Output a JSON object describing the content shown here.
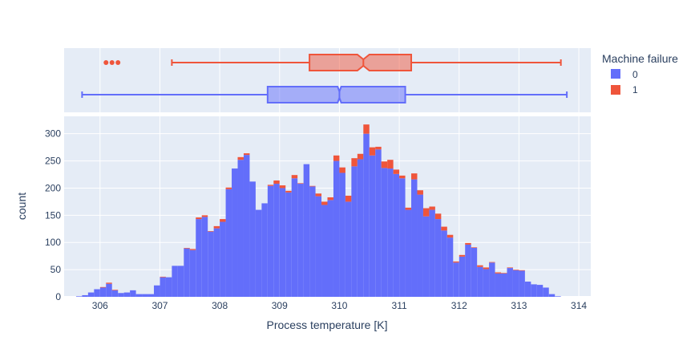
{
  "chart_data": {
    "type": "histogram",
    "xlabel": "Process temperature [K]",
    "ylabel": "count",
    "x_ticks": [
      "306",
      "307",
      "308",
      "309",
      "310",
      "311",
      "312",
      "313",
      "314"
    ],
    "y_ticks": [
      "0",
      "50",
      "100",
      "150",
      "200",
      "250",
      "300"
    ],
    "xlim": [
      305.4,
      314.2
    ],
    "ylim": [
      0,
      332
    ],
    "bin_start": 305.6,
    "bin_width": 0.1,
    "legend": {
      "title": "Machine failure",
      "entries": [
        {
          "label": "0",
          "color": "#636efa"
        },
        {
          "label": "1",
          "color": "#ef553b"
        }
      ]
    },
    "series": [
      {
        "name": "0",
        "color": "#636efa",
        "values": [
          1,
          3,
          8,
          14,
          17,
          24,
          12,
          7,
          8,
          12,
          5,
          5,
          5,
          21,
          36,
          36,
          57,
          57,
          89,
          86,
          143,
          147,
          120,
          126,
          138,
          198,
          236,
          252,
          261,
          212,
          160,
          172,
          204,
          208,
          200,
          192,
          218,
          208,
          244,
          203,
          185,
          169,
          178,
          250,
          228,
          175,
          240,
          253,
          300,
          260,
          271,
          237,
          236,
          226,
          218,
          160,
          216,
          188,
          148,
          160,
          143,
          122,
          109,
          63,
          74,
          96,
          90,
          55,
          51,
          63,
          43,
          43,
          53,
          49,
          48,
          28,
          23,
          22,
          17,
          5,
          1,
          0
        ]
      },
      {
        "name": "1",
        "color": "#ef553b",
        "values": [
          0,
          0,
          0,
          0,
          1,
          2,
          1,
          0,
          0,
          0,
          0,
          0,
          0,
          0,
          1,
          0,
          0,
          0,
          1,
          2,
          3,
          3,
          1,
          4,
          5,
          3,
          0,
          5,
          3,
          0,
          0,
          0,
          2,
          6,
          5,
          3,
          6,
          1,
          0,
          1,
          5,
          6,
          5,
          10,
          10,
          11,
          15,
          10,
          17,
          15,
          5,
          12,
          16,
          8,
          5,
          4,
          11,
          8,
          15,
          6,
          10,
          7,
          5,
          2,
          3,
          3,
          1,
          3,
          3,
          1,
          2,
          1,
          1,
          1,
          1,
          0,
          0,
          0,
          0,
          0,
          0,
          0
        ]
      }
    ],
    "box_plots": [
      {
        "name": "1",
        "color": "#ef553b",
        "fill": "rgba(239,85,59,0.5)",
        "lower_fence": 307.2,
        "q1": 309.5,
        "median": 310.4,
        "q3": 311.2,
        "upper_fence": 313.7,
        "notch_low": 310.3,
        "notch_high": 310.5,
        "outliers": [
          306.1,
          306.2,
          306.3
        ]
      },
      {
        "name": "0",
        "color": "#636efa",
        "fill": "rgba(99,110,250,0.5)",
        "lower_fence": 305.7,
        "q1": 308.8,
        "median": 310.0,
        "q3": 311.1,
        "upper_fence": 313.8,
        "notch_low": 309.97,
        "notch_high": 310.03,
        "outliers": []
      }
    ]
  }
}
